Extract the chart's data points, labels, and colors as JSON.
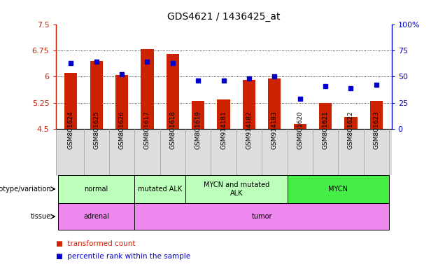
{
  "title": "GDS4621 / 1436425_at",
  "samples": [
    "GSM801624",
    "GSM801625",
    "GSM801626",
    "GSM801617",
    "GSM801618",
    "GSM801619",
    "GSM914181",
    "GSM914182",
    "GSM914183",
    "GSM801620",
    "GSM801621",
    "GSM801622",
    "GSM801623"
  ],
  "bar_values": [
    6.1,
    6.45,
    6.05,
    6.8,
    6.65,
    5.3,
    5.35,
    5.9,
    5.95,
    4.65,
    5.25,
    4.85,
    5.3
  ],
  "dot_values": [
    63,
    64,
    52,
    64,
    63,
    46,
    46,
    48,
    50,
    29,
    41,
    39,
    42
  ],
  "ylim_left": [
    4.5,
    7.5
  ],
  "ylim_right": [
    0,
    100
  ],
  "yticks_left": [
    4.5,
    5.25,
    6.0,
    6.75,
    7.5
  ],
  "yticks_right": [
    0,
    25,
    50,
    75,
    100
  ],
  "ytick_labels_left": [
    "4.5",
    "5.25",
    "6",
    "6.75",
    "7.5"
  ],
  "ytick_labels_right": [
    "0",
    "25",
    "50",
    "75",
    "100%"
  ],
  "bar_color": "#cc2200",
  "dot_color": "#0000cc",
  "bar_bottom": 4.5,
  "grid_values": [
    5.25,
    6.0,
    6.75
  ],
  "genotype_groups": [
    {
      "label": "normal",
      "start": 0,
      "end": 3,
      "color": "#bbffbb"
    },
    {
      "label": "mutated ALK",
      "start": 3,
      "end": 5,
      "color": "#bbffbb"
    },
    {
      "label": "MYCN and mutated\nALK",
      "start": 5,
      "end": 9,
      "color": "#bbffbb"
    },
    {
      "label": "MYCN",
      "start": 9,
      "end": 13,
      "color": "#44ee44"
    }
  ],
  "tissue_groups": [
    {
      "label": "adrenal",
      "start": 0,
      "end": 3,
      "color": "#ee88ee"
    },
    {
      "label": "tumor",
      "start": 3,
      "end": 13,
      "color": "#ee88ee"
    }
  ],
  "legend_items": [
    {
      "label": "transformed count",
      "color": "#cc2200"
    },
    {
      "label": "percentile rank within the sample",
      "color": "#0000cc"
    }
  ],
  "left_axis_color": "#cc2200",
  "right_axis_color": "#0000cc",
  "bar_width": 0.5,
  "tick_gray": "#cccccc",
  "xtick_bg": "#dddddd"
}
